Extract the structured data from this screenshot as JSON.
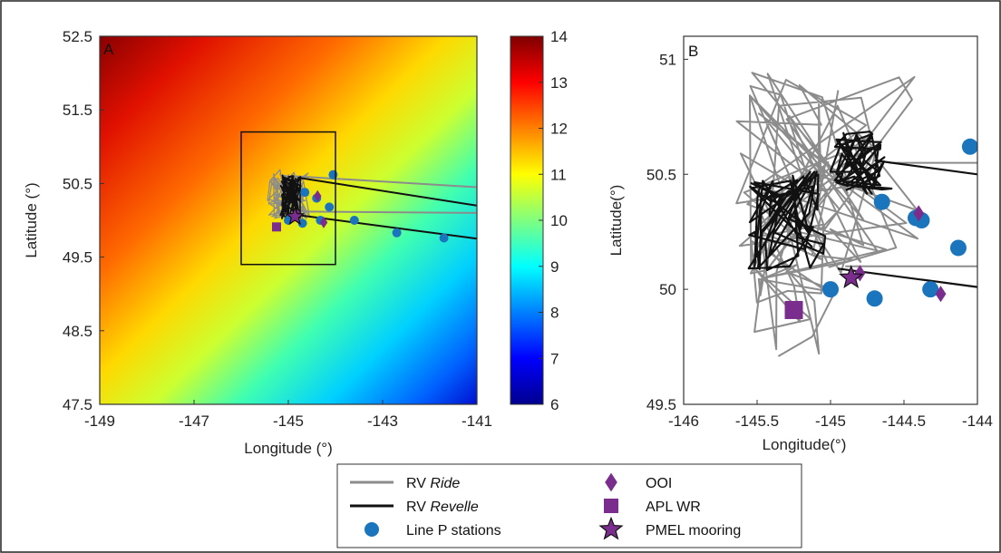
{
  "chart_data": [
    {
      "panel": "A",
      "type": "scatter",
      "xlabel": "Longitude (°)",
      "ylabel": "Latitude (°)",
      "xlim": [
        -149,
        -141
      ],
      "ylim": [
        47.5,
        52.5
      ],
      "xticks": [
        "-149",
        "-147",
        "-145",
        "-143",
        "-141"
      ],
      "yticks": [
        "47.5",
        "48.5",
        "49.5",
        "50.5",
        "51.5",
        "52.5"
      ],
      "background": "sea surface field, high in upper-left (about 14) to low in lower-right (about 6)",
      "colorbar": {
        "min": 6,
        "max": 14,
        "ticks": [
          "6",
          "7",
          "8",
          "9",
          "10",
          "11",
          "12",
          "13",
          "14"
        ]
      },
      "inset_box": {
        "lon": [
          -146,
          -144
        ],
        "lat": [
          49.4,
          51.2
        ]
      },
      "series": [
        {
          "name": "Line P stations",
          "marker": "circle",
          "color": "#1b75bc",
          "points": [
            [
              -145.0,
              50.0
            ],
            [
              -144.7,
              49.96
            ],
            [
              -144.32,
              50.0
            ],
            [
              -144.65,
              50.38
            ],
            [
              -144.4,
              50.3
            ],
            [
              -144.13,
              50.18
            ],
            [
              -144.05,
              50.62
            ],
            [
              -143.6,
              50.0
            ],
            [
              -142.7,
              49.83
            ],
            [
              -141.7,
              49.76
            ]
          ]
        },
        {
          "name": "OOI",
          "marker": "diamond",
          "color": "#7b2d8e",
          "points": [
            [
              -144.38,
              50.33
            ],
            [
              -144.25,
              49.97
            ],
            [
              -144.8,
              50.07
            ]
          ]
        },
        {
          "name": "APL WR",
          "marker": "square",
          "color": "#7b2d8e",
          "points": [
            [
              -145.25,
              49.91
            ]
          ]
        },
        {
          "name": "PMEL mooring",
          "marker": "star",
          "color": "#7b2d8e",
          "points": [
            [
              -144.86,
              50.05
            ]
          ]
        },
        {
          "name": "RV Ride",
          "marker": "line",
          "color": "#8c8c8c",
          "trails": [
            [
              [
                -144.9,
                50.6
              ],
              [
                -141.0,
                50.45
              ]
            ],
            [
              [
                -145.0,
                50.12
              ],
              [
                -141.0,
                50.1
              ]
            ]
          ]
        },
        {
          "name": "RV Revelle",
          "marker": "line",
          "color": "#111111",
          "trails": [
            [
              [
                -144.8,
                50.58
              ],
              [
                -141.0,
                50.2
              ]
            ],
            [
              [
                -144.9,
                50.08
              ],
              [
                -141.0,
                49.75
              ]
            ]
          ]
        }
      ]
    },
    {
      "panel": "B",
      "type": "scatter",
      "xlabel": "Longitude(°)",
      "ylabel": "Latitude(°)",
      "xlim": [
        -146,
        -144
      ],
      "ylim": [
        49.5,
        51.1
      ],
      "xticks": [
        "-146",
        "-145.5",
        "-145",
        "-144.5",
        "-144"
      ],
      "yticks": [
        "49.5",
        "50",
        "50.5",
        "51"
      ],
      "series": [
        {
          "name": "Line P stations",
          "marker": "circle",
          "color": "#1b75bc",
          "points": [
            [
              -145.0,
              50.0
            ],
            [
              -144.7,
              49.96
            ],
            [
              -144.32,
              50.0
            ],
            [
              -144.65,
              50.38
            ],
            [
              -144.42,
              50.31
            ],
            [
              -144.38,
              50.3
            ],
            [
              -144.13,
              50.18
            ],
            [
              -144.05,
              50.62
            ]
          ]
        },
        {
          "name": "OOI",
          "marker": "diamond",
          "color": "#7b2d8e",
          "points": [
            [
              -144.4,
              50.33
            ],
            [
              -144.25,
              49.98
            ],
            [
              -144.8,
              50.07
            ]
          ]
        },
        {
          "name": "APL WR",
          "marker": "square",
          "color": "#7b2d8e",
          "points": [
            [
              -145.25,
              49.91
            ]
          ]
        },
        {
          "name": "PMEL mooring",
          "marker": "star",
          "color": "#7b2d8e",
          "points": [
            [
              -144.86,
              50.05
            ]
          ]
        },
        {
          "name": "RV Ride",
          "marker": "line",
          "color": "#8c8c8c",
          "trails": [
            [
              [
                -144.6,
                50.55
              ],
              [
                -144.0,
                50.55
              ]
            ],
            [
              [
                -144.9,
                50.1
              ],
              [
                -144.0,
                50.1
              ]
            ]
          ]
        },
        {
          "name": "RV Revelle",
          "marker": "line",
          "color": "#111111",
          "trails": [
            [
              [
                -144.7,
                50.56
              ],
              [
                -144.0,
                50.5
              ]
            ],
            [
              [
                -144.95,
                50.09
              ],
              [
                -144.0,
                50.01
              ]
            ]
          ]
        }
      ]
    }
  ],
  "panels": {
    "a_letter": "A",
    "b_letter": "B"
  },
  "legend": {
    "items": [
      {
        "label_prefix": "RV ",
        "label_italic": "Ride",
        "color": "#8c8c8c",
        "marker": "line"
      },
      {
        "label_prefix": "RV ",
        "label_italic": "Revelle",
        "color": "#111111",
        "marker": "line"
      },
      {
        "label_prefix": "Line P stations",
        "label_italic": "",
        "color": "#1b75bc",
        "marker": "circle"
      },
      {
        "label_prefix": "OOI",
        "label_italic": "",
        "color": "#7b2d8e",
        "marker": "diamond"
      },
      {
        "label_prefix": "APL WR",
        "label_italic": "",
        "color": "#7b2d8e",
        "marker": "square"
      },
      {
        "label_prefix": "PMEL mooring",
        "label_italic": "",
        "color": "#7b2d8e",
        "marker": "star"
      }
    ]
  }
}
